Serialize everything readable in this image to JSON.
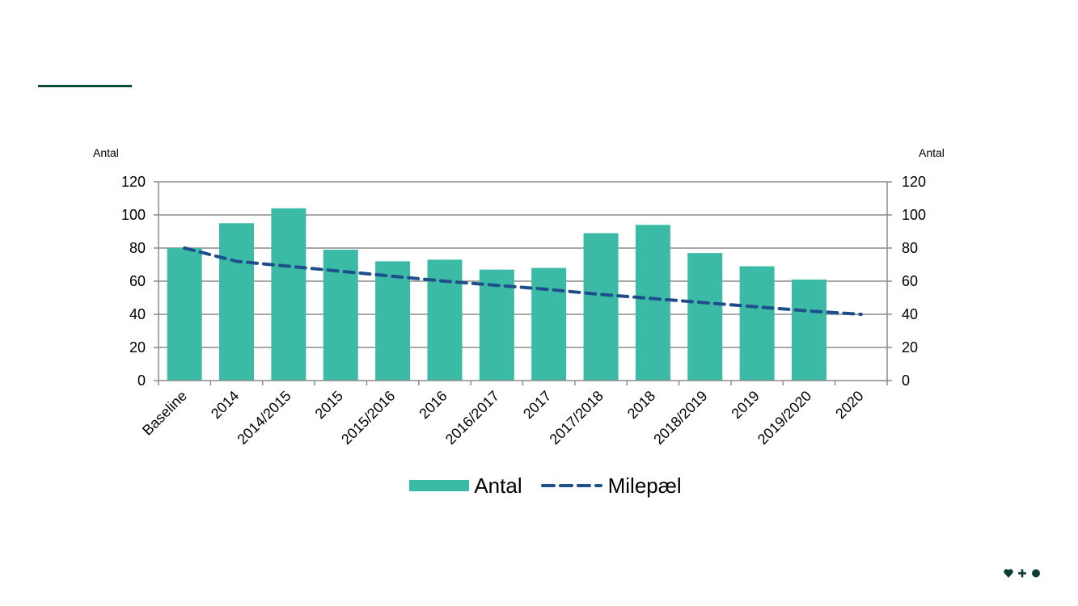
{
  "colors": {
    "accent": "#0b4a3a",
    "bar": "#3bbaa5",
    "milestone": "#1f4e8c",
    "grid": "#8c8c8c",
    "logo": "#0b3d33"
  },
  "logo": {
    "icon": "heart-plus-dot-logo"
  },
  "chart_data": {
    "type": "bar",
    "ylabel_left": "Antal",
    "ylabel_right": "Antal",
    "ylim": [
      0,
      120
    ],
    "yticks": [
      0,
      20,
      40,
      60,
      80,
      100,
      120
    ],
    "grid": true,
    "legend_position": "bottom",
    "categories": [
      "Baseline",
      "2014",
      "2014/2015",
      "2015",
      "2015/2016",
      "2016",
      "2016/2017",
      "2017",
      "2017/2018",
      "2018",
      "2018/2019",
      "2019",
      "2019/2020",
      "2020"
    ],
    "series": [
      {
        "name": "Antal",
        "type": "bar",
        "values": [
          80,
          95,
          104,
          79,
          72,
          73,
          67,
          68,
          89,
          94,
          77,
          69,
          61,
          null
        ]
      },
      {
        "name": "Milepæl",
        "type": "line",
        "style": "dashed",
        "values": [
          80,
          72,
          69,
          66,
          63,
          60,
          57.5,
          55,
          52,
          49.5,
          47,
          44.5,
          42,
          40
        ]
      }
    ]
  }
}
